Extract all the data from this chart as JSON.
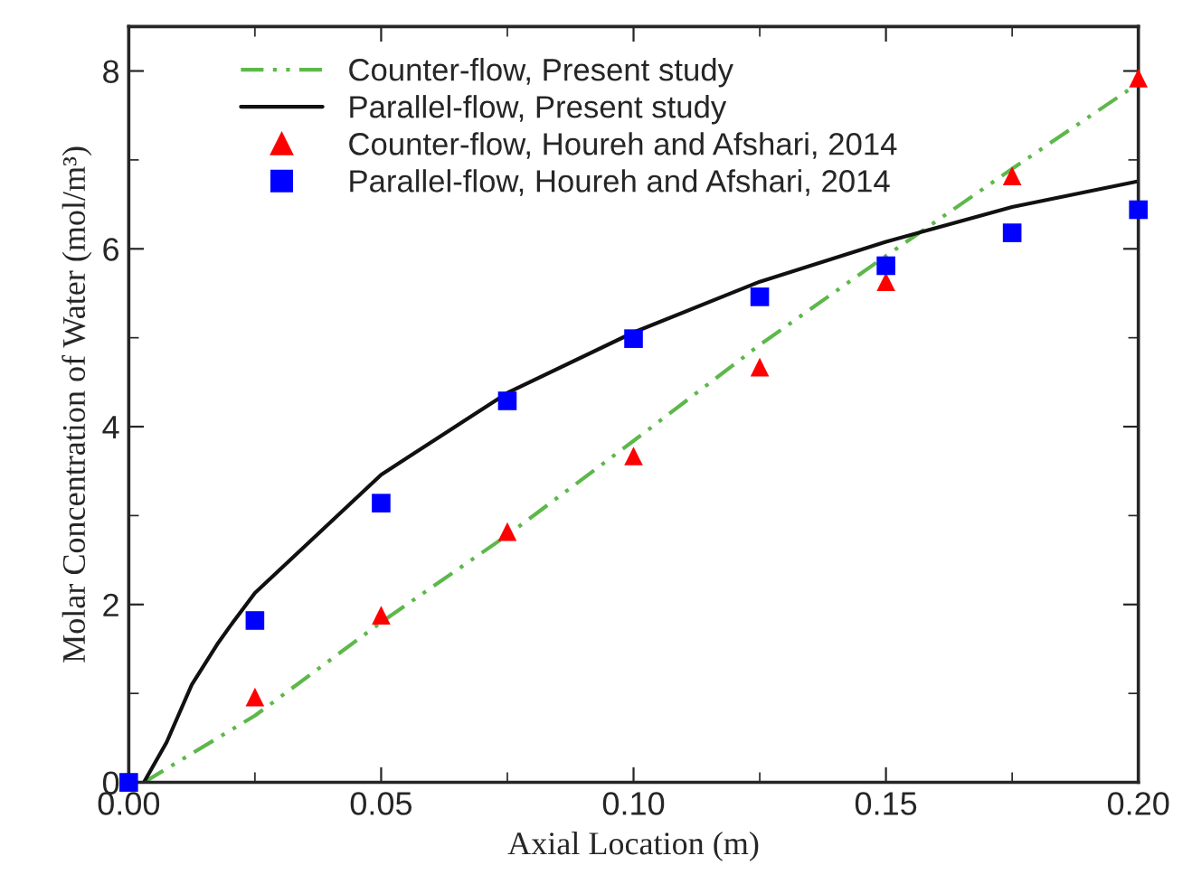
{
  "chart_data": {
    "type": "line",
    "xlabel": "Axial Location (m)",
    "ylabel": "Molar Concentration of Water (mol/m³)",
    "xlim": [
      0,
      0.2
    ],
    "ylim": [
      0,
      8.5
    ],
    "xticks": [
      {
        "value": 0,
        "label": "0.00"
      },
      {
        "value": 0.05,
        "label": "0.05"
      },
      {
        "value": 0.1,
        "label": "0.10"
      },
      {
        "value": 0.15,
        "label": "0.15"
      },
      {
        "value": 0.2,
        "label": "0.20"
      }
    ],
    "yticks": [
      0,
      2,
      4,
      6,
      8
    ],
    "grid": false,
    "legend": "top left",
    "series": [
      {
        "name": "Counter-flow, Present study",
        "line_style": "dashdot",
        "marker": "none",
        "color": "#5db84a",
        "x": [
          0.003,
          0.025,
          0.05,
          0.075,
          0.1,
          0.125,
          0.15,
          0.175,
          0.2
        ],
        "values": [
          0,
          0.75,
          1.8,
          2.78,
          3.84,
          4.92,
          5.92,
          6.9,
          7.86
        ]
      },
      {
        "name": "Parallel-flow, Present study",
        "line_style": "solid",
        "marker": "none",
        "color": "#111111",
        "x": [
          0.003,
          0.0075,
          0.0125,
          0.0175,
          0.02,
          0.025,
          0.05,
          0.075,
          0.1,
          0.125,
          0.15,
          0.175,
          0.2
        ],
        "values": [
          0,
          0.45,
          1.1,
          1.55,
          1.75,
          2.13,
          3.46,
          4.38,
          5.06,
          5.63,
          6.08,
          6.47,
          6.76
        ]
      },
      {
        "name": "Counter-flow, Houreh and Afshari, 2014",
        "type": "scatter",
        "marker": "triangle",
        "color": "#ff0000",
        "x": [
          0,
          0.025,
          0.05,
          0.075,
          0.1,
          0.125,
          0.15,
          0.175,
          0.2
        ],
        "values": [
          0,
          0.96,
          1.88,
          2.82,
          3.67,
          4.67,
          5.63,
          6.82,
          7.92
        ]
      },
      {
        "name": "Parallel-flow, Houreh and Afshari, 2014",
        "type": "scatter",
        "marker": "square",
        "color": "#0000ff",
        "x": [
          0,
          0.025,
          0.05,
          0.075,
          0.1,
          0.125,
          0.15,
          0.175,
          0.2
        ],
        "values": [
          0,
          1.82,
          3.14,
          4.29,
          4.99,
          5.46,
          5.81,
          6.18,
          6.44
        ]
      }
    ]
  }
}
